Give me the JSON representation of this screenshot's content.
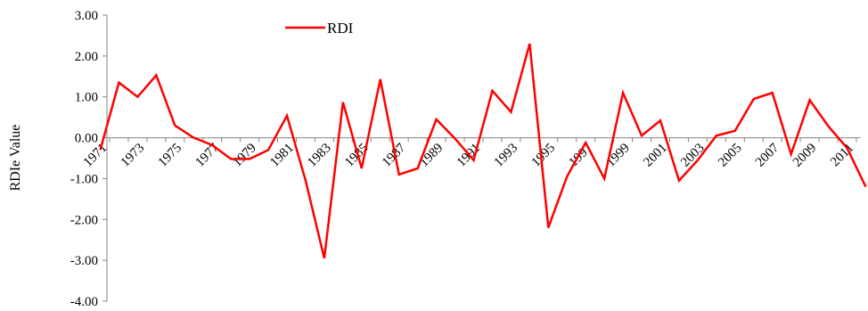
{
  "chart_data": {
    "type": "line",
    "title": "",
    "xlabel": "",
    "ylabel": "RDIe Value",
    "ylim": [
      -4,
      3
    ],
    "yticks": [
      "3.00",
      "2.00",
      "1.00",
      "0.00",
      "-1.00",
      "-2.00",
      "-3.00",
      "-4.00"
    ],
    "grid": false,
    "legend": "top-center",
    "x": [
      1971,
      1972,
      1973,
      1974,
      1975,
      1976,
      1977,
      1978,
      1979,
      1980,
      1981,
      1982,
      1983,
      1984,
      1985,
      1986,
      1987,
      1988,
      1989,
      1990,
      1991,
      1992,
      1993,
      1994,
      1995,
      1996,
      1997,
      1998,
      1999,
      2000,
      2001,
      2002,
      2003,
      2004,
      2005,
      2006,
      2007,
      2008,
      2009,
      2010,
      2011,
      2012
    ],
    "x_tick_labels": [
      "1971",
      "1973",
      "1975",
      "1977",
      "1979",
      "1981",
      "1983",
      "1985",
      "1987",
      "1989",
      "1991",
      "1993",
      "1995",
      "1997",
      "1999",
      "2001",
      "2003",
      "2005",
      "2007",
      "2009",
      "2011"
    ],
    "series": [
      {
        "name": "RDI",
        "color": "#ff0000",
        "values": [
          -0.3,
          1.35,
          1.0,
          1.53,
          0.3,
          0.0,
          -0.18,
          -0.52,
          -0.52,
          -0.3,
          0.54,
          -1.05,
          -2.95,
          0.87,
          -0.75,
          1.43,
          -0.9,
          -0.75,
          0.45,
          -0.02,
          -0.55,
          1.15,
          0.63,
          2.3,
          -2.2,
          -0.95,
          -0.12,
          -1.0,
          1.1,
          0.05,
          0.42,
          -1.05,
          -0.55,
          0.05,
          0.17,
          0.95,
          1.1,
          -0.4,
          0.92,
          0.28,
          -0.25,
          -1.2
        ]
      }
    ]
  }
}
